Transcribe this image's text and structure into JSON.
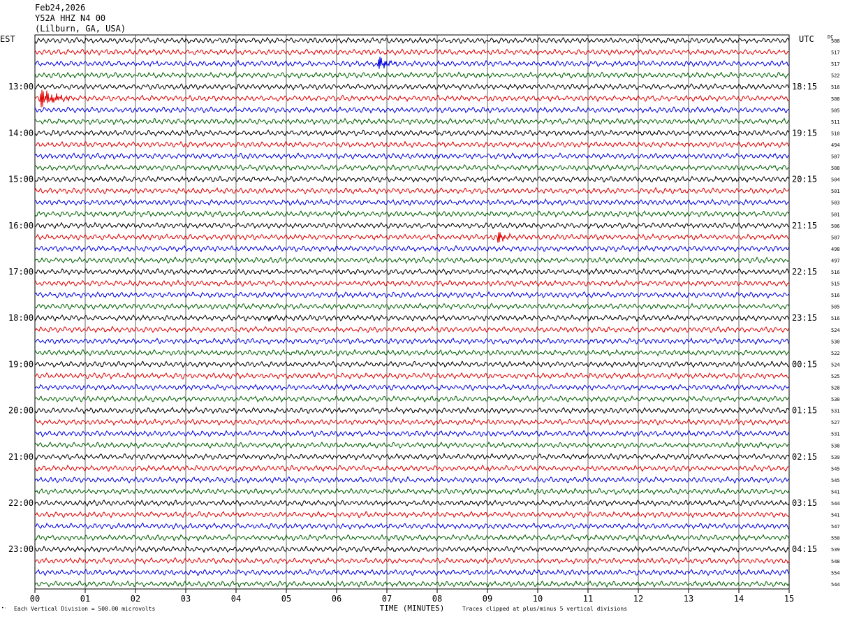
{
  "header": {
    "date": "Feb24,2026",
    "station": "Y52A HHZ N4 00",
    "location": "(Lilburn, GA, USA)"
  },
  "labels": {
    "left_tz": "EST",
    "right_tz": "UTC",
    "dc": "DC",
    "x_axis": "TIME (MINUTES)",
    "scale_note": "Each Vertical Division =  500.00 microvolts",
    "clip_note": "Traces clipped at plus/minus 5 vertical divisions",
    "logo_mark": "•·"
  },
  "colors": {
    "trace_cycle": [
      "#000000",
      "#e00000",
      "#0000e0",
      "#006000"
    ],
    "grid": "#000000"
  },
  "chart_data": {
    "type": "line",
    "title": "Feb24,2026 Y52A HHZ N4 00 (Lilburn, GA, USA)",
    "xlabel": "TIME (MINUTES)",
    "x_ticks": [
      "00",
      "01",
      "02",
      "03",
      "04",
      "05",
      "06",
      "07",
      "08",
      "09",
      "10",
      "11",
      "12",
      "13",
      "14",
      "15"
    ],
    "xlim": [
      0,
      15
    ],
    "trace_count": 48,
    "left_hour_labels": [
      "13:00",
      "14:00",
      "15:00",
      "16:00",
      "17:00",
      "18:00",
      "19:00",
      "20:00",
      "21:00",
      "22:00",
      "23:00"
    ],
    "right_hour_labels": [
      "18:15",
      "19:15",
      "20:15",
      "21:15",
      "22:15",
      "23:15",
      "00:15",
      "01:15",
      "02:15",
      "03:15",
      "04:15"
    ],
    "hour_label_first_trace": 4,
    "dc_offsets": [
      508,
      517,
      517,
      522,
      516,
      508,
      505,
      511,
      510,
      494,
      507,
      508,
      504,
      501,
      503,
      501,
      506,
      507,
      498,
      497,
      516,
      515,
      516,
      505,
      516,
      524,
      530,
      522,
      524,
      525,
      528,
      530,
      531,
      527,
      531,
      538,
      539,
      545,
      545,
      541,
      544,
      541,
      547,
      550,
      539,
      548,
      554,
      544
    ],
    "events": [
      {
        "trace": 2,
        "minute": 6.8,
        "amplitude": 2.4,
        "duration_min": 0.45
      },
      {
        "trace": 5,
        "minute": 0.1,
        "amplitude": 3.0,
        "duration_min": 0.7
      },
      {
        "trace": 17,
        "minute": 9.2,
        "amplitude": 1.6,
        "duration_min": 0.35
      },
      {
        "trace": 24,
        "minute": 4.65,
        "amplitude": 0.9,
        "duration_min": 0.15
      }
    ],
    "grid": true
  }
}
